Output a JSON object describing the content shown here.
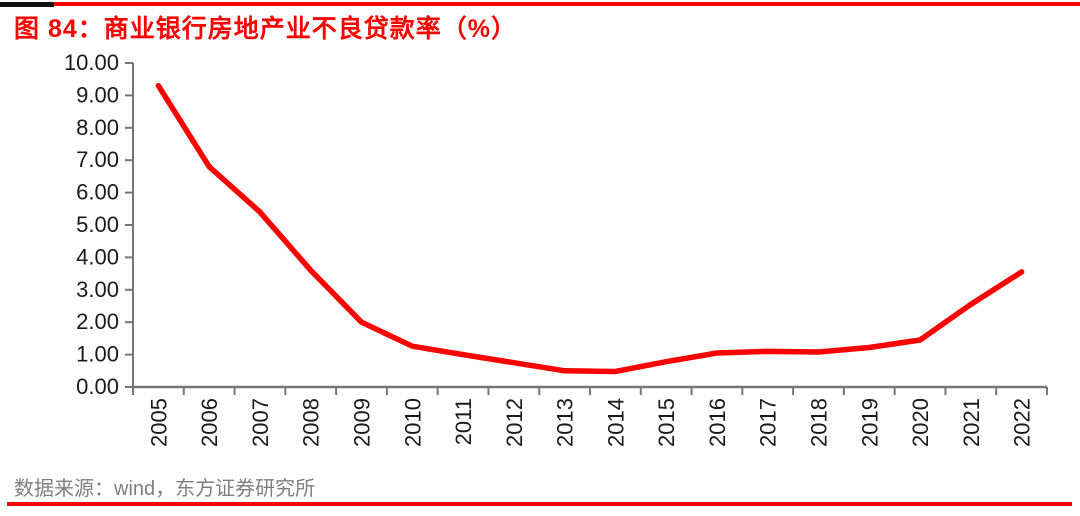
{
  "figure": {
    "title": "图 84：商业银行房地产业不良贷款率（%）",
    "source_note": "数据来源：wind，东方证券研究所"
  },
  "chart_data": {
    "type": "line",
    "title": "商业银行房地产业不良贷款率（%）",
    "categories": [
      "2005",
      "2006",
      "2007",
      "2008",
      "2009",
      "2010",
      "2011",
      "2012",
      "2013",
      "2014",
      "2015",
      "2016",
      "2017",
      "2018",
      "2019",
      "2020",
      "2021",
      "2022"
    ],
    "series": [
      {
        "name": "商业银行房地产业不良贷款率",
        "values": [
          9.3,
          6.8,
          5.4,
          3.6,
          2.0,
          1.26,
          1.0,
          0.75,
          0.5,
          0.48,
          0.78,
          1.05,
          1.1,
          1.08,
          1.22,
          1.45,
          2.55,
          3.55
        ]
      }
    ],
    "xlabel": "",
    "ylabel": "",
    "ylim": [
      0,
      10
    ],
    "ytick_step": 1,
    "ytick_decimals": 2,
    "grid": false,
    "legend_position": "none",
    "line_color": "#fe0000",
    "axis_color": "#767676",
    "tick_label_color": "#1a1a1a"
  },
  "colors": {
    "accent_red": "#fe0000",
    "source_text_gray": "#7f7f7f",
    "background": "#ffffff"
  }
}
